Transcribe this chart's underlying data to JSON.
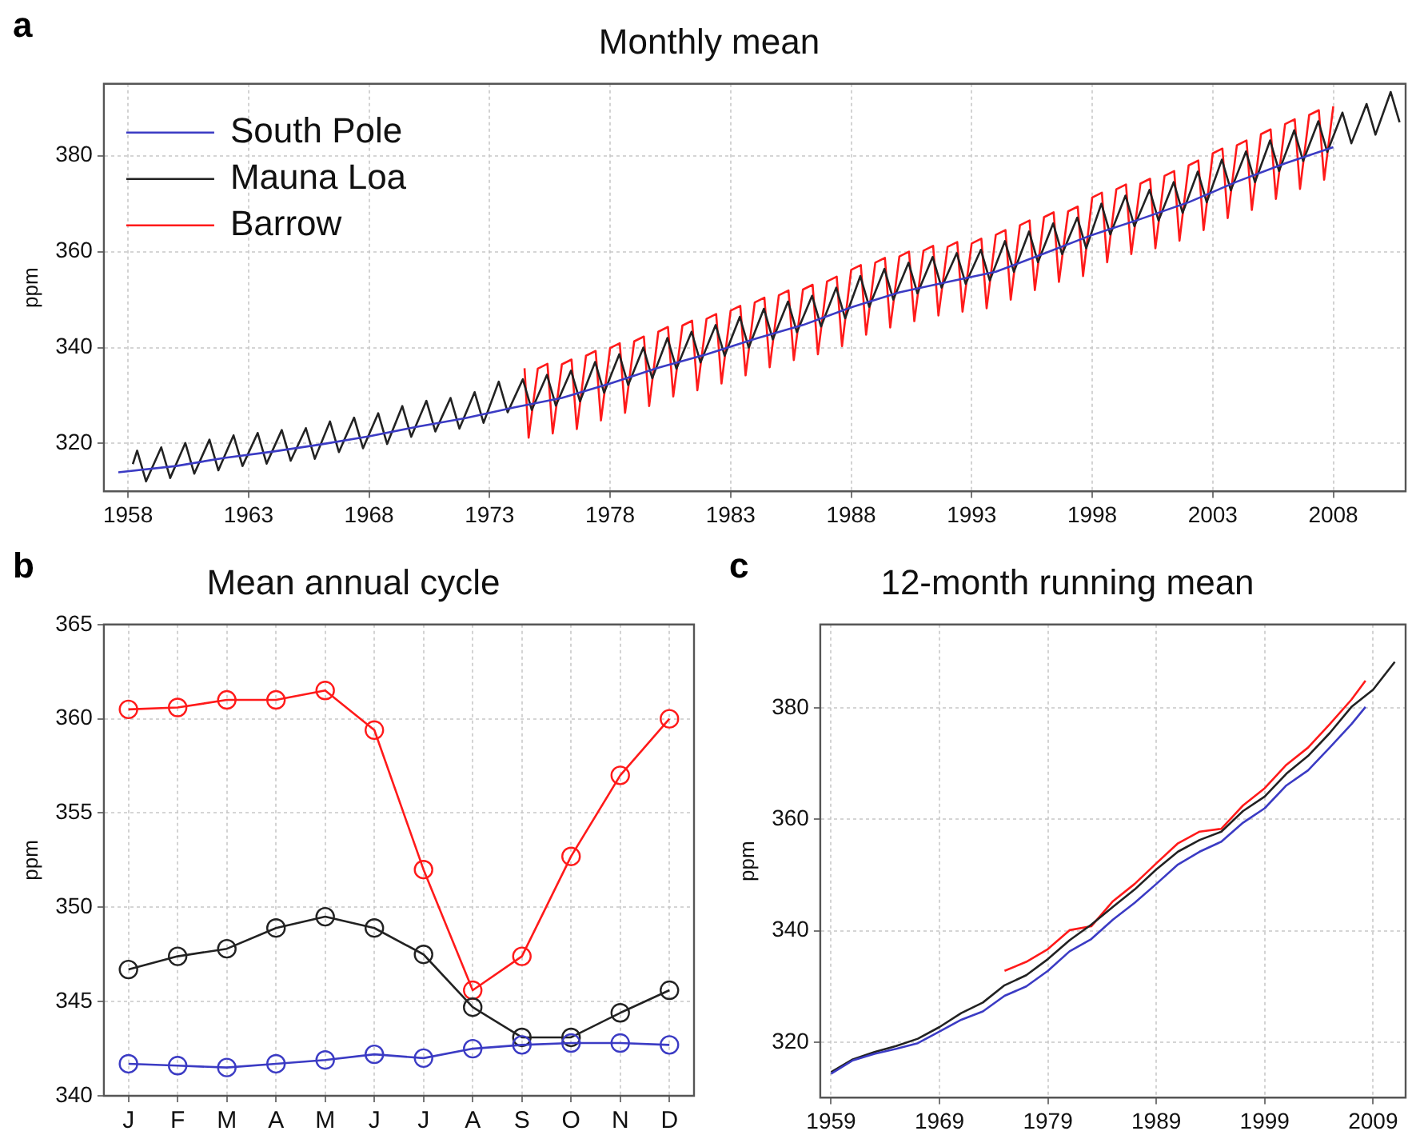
{
  "chart_data": [
    {
      "type": "line",
      "title": "Monthly mean",
      "ylabel": "ppm",
      "annotations": [
        "a"
      ],
      "xlim": [
        1957,
        2011
      ],
      "xticks": [
        1958,
        1963,
        1968,
        1973,
        1978,
        1983,
        1988,
        1993,
        1998,
        2003,
        2008
      ],
      "ylim": [
        310,
        395
      ],
      "yticks": [
        320,
        340,
        360,
        380
      ],
      "grid": true,
      "legend": "top left",
      "marker": "none",
      "line_style": "solid",
      "series": [
        {
          "name": "South Pole",
          "color": "#3b3bc4",
          "x": [
            1957.6,
            1960,
            1962,
            1964,
            1966,
            1968,
            1970,
            1972,
            1974,
            1976,
            1978,
            1980,
            1982,
            1984,
            1986,
            1988,
            1990,
            1992,
            1994,
            1996,
            1998,
            2000,
            2002,
            2004,
            2006,
            2008
          ],
          "values": [
            314.0,
            315.3,
            317.0,
            318.3,
            319.8,
            321.5,
            323.5,
            325.3,
            327.5,
            329.5,
            332.5,
            335.8,
            338.6,
            341.8,
            344.7,
            348.4,
            351.5,
            353.7,
            355.8,
            359.6,
            363.5,
            366.8,
            370.3,
            374.6,
            378.4,
            381.8
          ]
        },
        {
          "name": "Mauna Loa",
          "color": "#222222",
          "x": [
            1958.2,
            1958.38,
            1958.75,
            1959.38,
            1959.75,
            1960.38,
            1960.75,
            1961.38,
            1961.75,
            1962.38,
            1962.75,
            1963.38,
            1963.75,
            1964.38,
            1964.75,
            1965.38,
            1965.75,
            1966.38,
            1966.75,
            1967.38,
            1967.75,
            1968.38,
            1968.75,
            1969.38,
            1969.75,
            1970.38,
            1970.75,
            1971.38,
            1971.75,
            1972.38,
            1972.75,
            1973.38,
            1973.75,
            1974.38,
            1974.75,
            1975.38,
            1975.75,
            1976.38,
            1976.75,
            1977.38,
            1977.75,
            1978.38,
            1978.75,
            1979.38,
            1979.75,
            1980.38,
            1980.75,
            1981.38,
            1981.75,
            1982.38,
            1982.75,
            1983.38,
            1983.75,
            1984.38,
            1984.75,
            1985.38,
            1985.75,
            1986.38,
            1986.75,
            1987.38,
            1987.75,
            1988.38,
            1988.75,
            1989.38,
            1989.75,
            1990.38,
            1990.75,
            1991.38,
            1991.75,
            1992.38,
            1992.75,
            1993.38,
            1993.75,
            1994.38,
            1994.75,
            1995.38,
            1995.75,
            1996.38,
            1996.75,
            1997.38,
            1997.75,
            1998.38,
            1998.75,
            1999.38,
            1999.75,
            2000.38,
            2000.75,
            2001.38,
            2001.75,
            2002.38,
            2002.75,
            2003.38,
            2003.75,
            2004.38,
            2004.75,
            2005.38,
            2005.75,
            2006.38,
            2006.75,
            2007.38,
            2007.75,
            2008.38,
            2008.75,
            2009.38,
            2009.75,
            2010.38,
            2010.75
          ],
          "values": [
            315.7,
            318.5,
            312.1,
            319.2,
            312.8,
            320.1,
            313.7,
            320.8,
            314.4,
            321.7,
            315.3,
            322.2,
            315.8,
            322.8,
            316.4,
            323.2,
            316.8,
            324.6,
            318.2,
            325.4,
            319.0,
            326.3,
            319.9,
            327.8,
            321.4,
            328.9,
            322.5,
            329.5,
            323.1,
            330.7,
            324.3,
            332.9,
            326.5,
            333.4,
            327.0,
            334.3,
            327.9,
            335.2,
            328.8,
            337.0,
            330.6,
            338.6,
            332.2,
            340.0,
            333.6,
            342.0,
            335.6,
            343.3,
            336.9,
            344.7,
            338.3,
            346.4,
            340.0,
            348.1,
            341.7,
            349.6,
            343.2,
            350.8,
            344.4,
            352.5,
            346.1,
            354.9,
            348.5,
            356.4,
            350.0,
            357.7,
            351.3,
            358.9,
            352.5,
            359.7,
            353.3,
            360.4,
            354.0,
            362.2,
            355.8,
            364.2,
            357.8,
            365.9,
            359.5,
            367.1,
            360.7,
            370.0,
            363.6,
            371.7,
            365.3,
            372.9,
            366.5,
            374.5,
            368.1,
            376.7,
            370.3,
            379.2,
            372.8,
            380.9,
            374.5,
            383.2,
            376.8,
            385.3,
            378.9,
            387.2,
            380.8,
            389.0,
            382.6,
            390.8,
            384.4,
            393.3,
            387.0
          ]
        },
        {
          "name": "Barrow",
          "color": "#ff1a1a",
          "x": [
            1974.45,
            1974.62,
            1975.0,
            1975.4,
            1975.62,
            1976.0,
            1976.4,
            1976.62,
            1977.0,
            1977.4,
            1977.62,
            1978.0,
            1978.4,
            1978.62,
            1979.0,
            1979.4,
            1979.62,
            1980.0,
            1980.4,
            1980.62,
            1981.0,
            1981.4,
            1981.62,
            1982.0,
            1982.4,
            1982.62,
            1983.0,
            1983.4,
            1983.62,
            1984.0,
            1984.4,
            1984.62,
            1985.0,
            1985.4,
            1985.62,
            1986.0,
            1986.4,
            1986.62,
            1987.0,
            1987.4,
            1987.62,
            1988.0,
            1988.4,
            1988.62,
            1989.0,
            1989.4,
            1989.62,
            1990.0,
            1990.4,
            1990.62,
            1991.0,
            1991.4,
            1991.62,
            1992.0,
            1992.4,
            1992.62,
            1993.0,
            1993.4,
            1993.62,
            1994.0,
            1994.4,
            1994.62,
            1995.0,
            1995.4,
            1995.62,
            1996.0,
            1996.4,
            1996.62,
            1997.0,
            1997.4,
            1997.62,
            1998.0,
            1998.4,
            1998.62,
            1999.0,
            1999.4,
            1999.62,
            2000.0,
            2000.4,
            2000.62,
            2001.0,
            2001.4,
            2001.62,
            2002.0,
            2002.4,
            2002.62,
            2003.0,
            2003.4,
            2003.62,
            2004.0,
            2004.4,
            2004.62,
            2005.0,
            2005.4,
            2005.62,
            2006.0,
            2006.4,
            2006.62,
            2007.0,
            2007.4,
            2007.62,
            2008.0
          ],
          "values": [
            335.7,
            321.2,
            335.6,
            336.6,
            322.1,
            336.5,
            337.5,
            323.0,
            338.3,
            339.3,
            324.8,
            339.9,
            340.9,
            326.4,
            341.3,
            342.3,
            327.8,
            343.3,
            344.3,
            329.8,
            344.6,
            345.6,
            331.1,
            346.0,
            347.0,
            332.5,
            347.7,
            348.7,
            334.2,
            349.4,
            350.4,
            335.9,
            350.9,
            351.9,
            337.4,
            352.1,
            353.1,
            338.6,
            353.8,
            354.8,
            340.3,
            356.2,
            357.2,
            342.7,
            357.7,
            358.7,
            344.2,
            359.0,
            360.0,
            345.5,
            360.2,
            361.2,
            346.7,
            361.0,
            362.0,
            347.5,
            361.7,
            362.7,
            348.2,
            363.5,
            364.5,
            350.0,
            365.5,
            366.5,
            352.0,
            367.2,
            368.2,
            353.7,
            368.4,
            369.4,
            354.9,
            371.3,
            372.3,
            357.8,
            373.0,
            374.0,
            359.5,
            374.2,
            375.2,
            360.7,
            375.8,
            376.8,
            362.3,
            378.0,
            379.0,
            364.5,
            380.5,
            381.5,
            367.0,
            382.2,
            383.2,
            368.7,
            384.5,
            385.5,
            371.0,
            386.6,
            387.6,
            373.1,
            388.5,
            389.5,
            375.0,
            390.3
          ]
        }
      ]
    },
    {
      "type": "line",
      "title": "Mean annual cycle",
      "ylabel": "ppm",
      "annotations": [
        "b"
      ],
      "categories": [
        "J",
        "F",
        "M",
        "A",
        "M",
        "J",
        "J",
        "A",
        "S",
        "O",
        "N",
        "D"
      ],
      "ylim": [
        340,
        365
      ],
      "yticks": [
        340,
        345,
        350,
        355,
        360,
        365
      ],
      "grid": true,
      "marker": "circle",
      "line_style": "solid",
      "series": [
        {
          "color": "#3b3bc4",
          "values": [
            341.7,
            341.6,
            341.5,
            341.7,
            341.9,
            342.2,
            342.0,
            342.5,
            342.7,
            342.8,
            342.8,
            342.7
          ]
        },
        {
          "color": "#222222",
          "values": [
            346.7,
            347.4,
            347.8,
            348.9,
            349.5,
            348.9,
            347.5,
            344.7,
            343.1,
            343.1,
            344.4,
            345.6
          ]
        },
        {
          "color": "#ff1a1a",
          "values": [
            360.5,
            360.6,
            361.0,
            361.0,
            361.5,
            359.4,
            352.0,
            345.6,
            347.4,
            352.7,
            357.0,
            360.0
          ]
        }
      ]
    },
    {
      "type": "line",
      "title": "12-month running mean",
      "ylabel": "ppm",
      "annotations": [
        "c"
      ],
      "xlim": [
        1958,
        2012
      ],
      "xticks": [
        1959,
        1969,
        1979,
        1989,
        1999,
        2009
      ],
      "ylim": [
        310,
        395
      ],
      "yticks": [
        320,
        340,
        360,
        380
      ],
      "grid": true,
      "marker": "none",
      "line_style": "solid",
      "series": [
        {
          "color": "#3b3bc4",
          "x": [
            1959,
            1961,
            1963,
            1965,
            1967,
            1969,
            1971,
            1973,
            1975,
            1977,
            1979,
            1981,
            1983,
            1985,
            1987,
            1989,
            1991,
            1993,
            1995,
            1997,
            1999,
            2001,
            2003,
            2005,
            2007,
            2008.3
          ],
          "values": [
            314.3,
            316.7,
            317.9,
            318.8,
            319.8,
            321.9,
            324.0,
            325.5,
            328.3,
            330.0,
            332.8,
            336.3,
            338.5,
            342.0,
            345.0,
            348.4,
            351.9,
            354.2,
            356.0,
            359.4,
            362.0,
            366.1,
            368.8,
            372.9,
            377.1,
            380.2
          ]
        },
        {
          "color": "#222222",
          "x": [
            1959,
            1961,
            1963,
            1965,
            1967,
            1969,
            1971,
            1973,
            1975,
            1977,
            1979,
            1981,
            1983,
            1985,
            1987,
            1989,
            1991,
            1993,
            1995,
            1997,
            1999,
            2001,
            2003,
            2005,
            2007,
            2009,
            2011
          ],
          "values": [
            314.6,
            316.9,
            318.2,
            319.3,
            320.6,
            322.7,
            325.2,
            327.1,
            330.2,
            332.0,
            334.9,
            338.3,
            341.1,
            344.3,
            347.4,
            351.0,
            354.2,
            356.3,
            357.8,
            361.5,
            364.1,
            368.2,
            371.4,
            375.5,
            380.2,
            383.3,
            388.3
          ]
        },
        {
          "color": "#ff1a1a",
          "x": [
            1975,
            1977,
            1979,
            1981,
            1983,
            1985,
            1987,
            1989,
            1991,
            1993,
            1995,
            1997,
            1999,
            2001,
            2003,
            2005,
            2007,
            2008.3
          ],
          "values": [
            332.8,
            334.4,
            336.7,
            340.1,
            340.8,
            345.3,
            348.4,
            352.1,
            355.7,
            357.8,
            358.3,
            362.5,
            365.6,
            369.8,
            372.9,
            377.1,
            381.5,
            384.9
          ]
        }
      ]
    }
  ]
}
